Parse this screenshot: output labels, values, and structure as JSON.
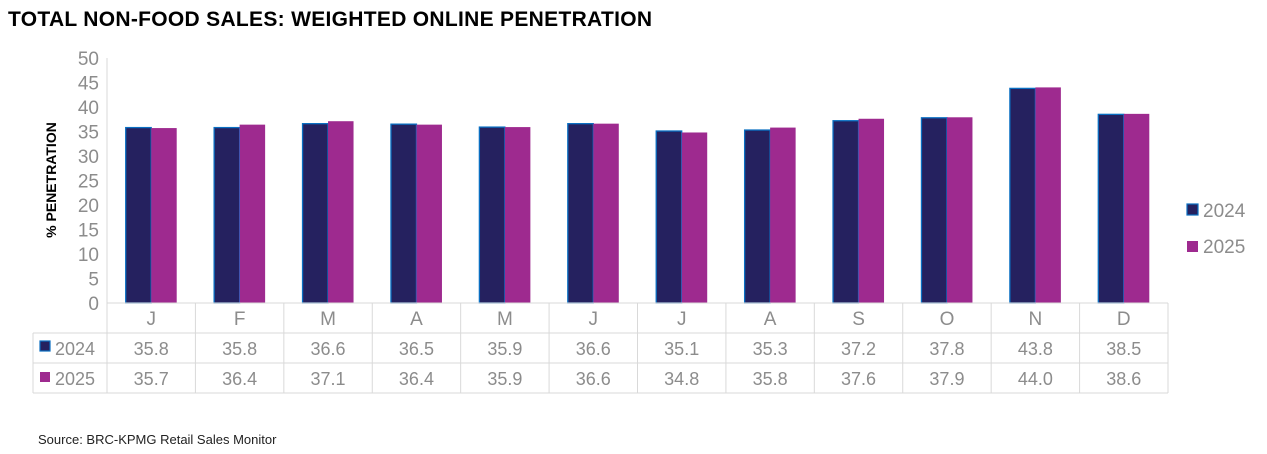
{
  "title": "TOTAL NON-FOOD SALES: WEIGHTED ONLINE PENETRATION",
  "source": "Source: BRC-KPMG Retail Sales Monitor",
  "colors": {
    "2024": "#25215f",
    "2024_border": "#0a6fc2",
    "2025": "#9e2a8f"
  },
  "chart_data": {
    "type": "bar",
    "title": "TOTAL NON-FOOD SALES: WEIGHTED ONLINE PENETRATION",
    "ylabel": "% PENETRATION",
    "xlabel": "",
    "ylim": [
      0,
      50
    ],
    "yticks": [
      "0",
      "5",
      "10",
      "15",
      "20",
      "25",
      "30",
      "35",
      "40",
      "45",
      "50"
    ],
    "categories": [
      "J",
      "F",
      "M",
      "A",
      "M",
      "J",
      "J",
      "A",
      "S",
      "O",
      "N",
      "D"
    ],
    "series": [
      {
        "name": "2024",
        "values": [
          35.8,
          35.8,
          36.6,
          36.5,
          35.9,
          36.6,
          35.1,
          35.3,
          37.2,
          37.8,
          43.8,
          38.5
        ],
        "labels": [
          "35.8",
          "35.8",
          "36.6",
          "36.5",
          "35.9",
          "36.6",
          "35.1",
          "35.3",
          "37.2",
          "37.8",
          "43.8",
          "38.5"
        ]
      },
      {
        "name": "2025",
        "values": [
          35.7,
          36.4,
          37.1,
          36.4,
          35.9,
          36.6,
          34.8,
          35.8,
          37.6,
          37.9,
          44.0,
          38.6
        ],
        "labels": [
          "35.7",
          "36.4",
          "37.1",
          "36.4",
          "35.9",
          "36.6",
          "34.8",
          "35.8",
          "37.6",
          "37.9",
          "44.0",
          "38.6"
        ]
      }
    ],
    "legend": "right",
    "grid": false,
    "data_table": true
  }
}
